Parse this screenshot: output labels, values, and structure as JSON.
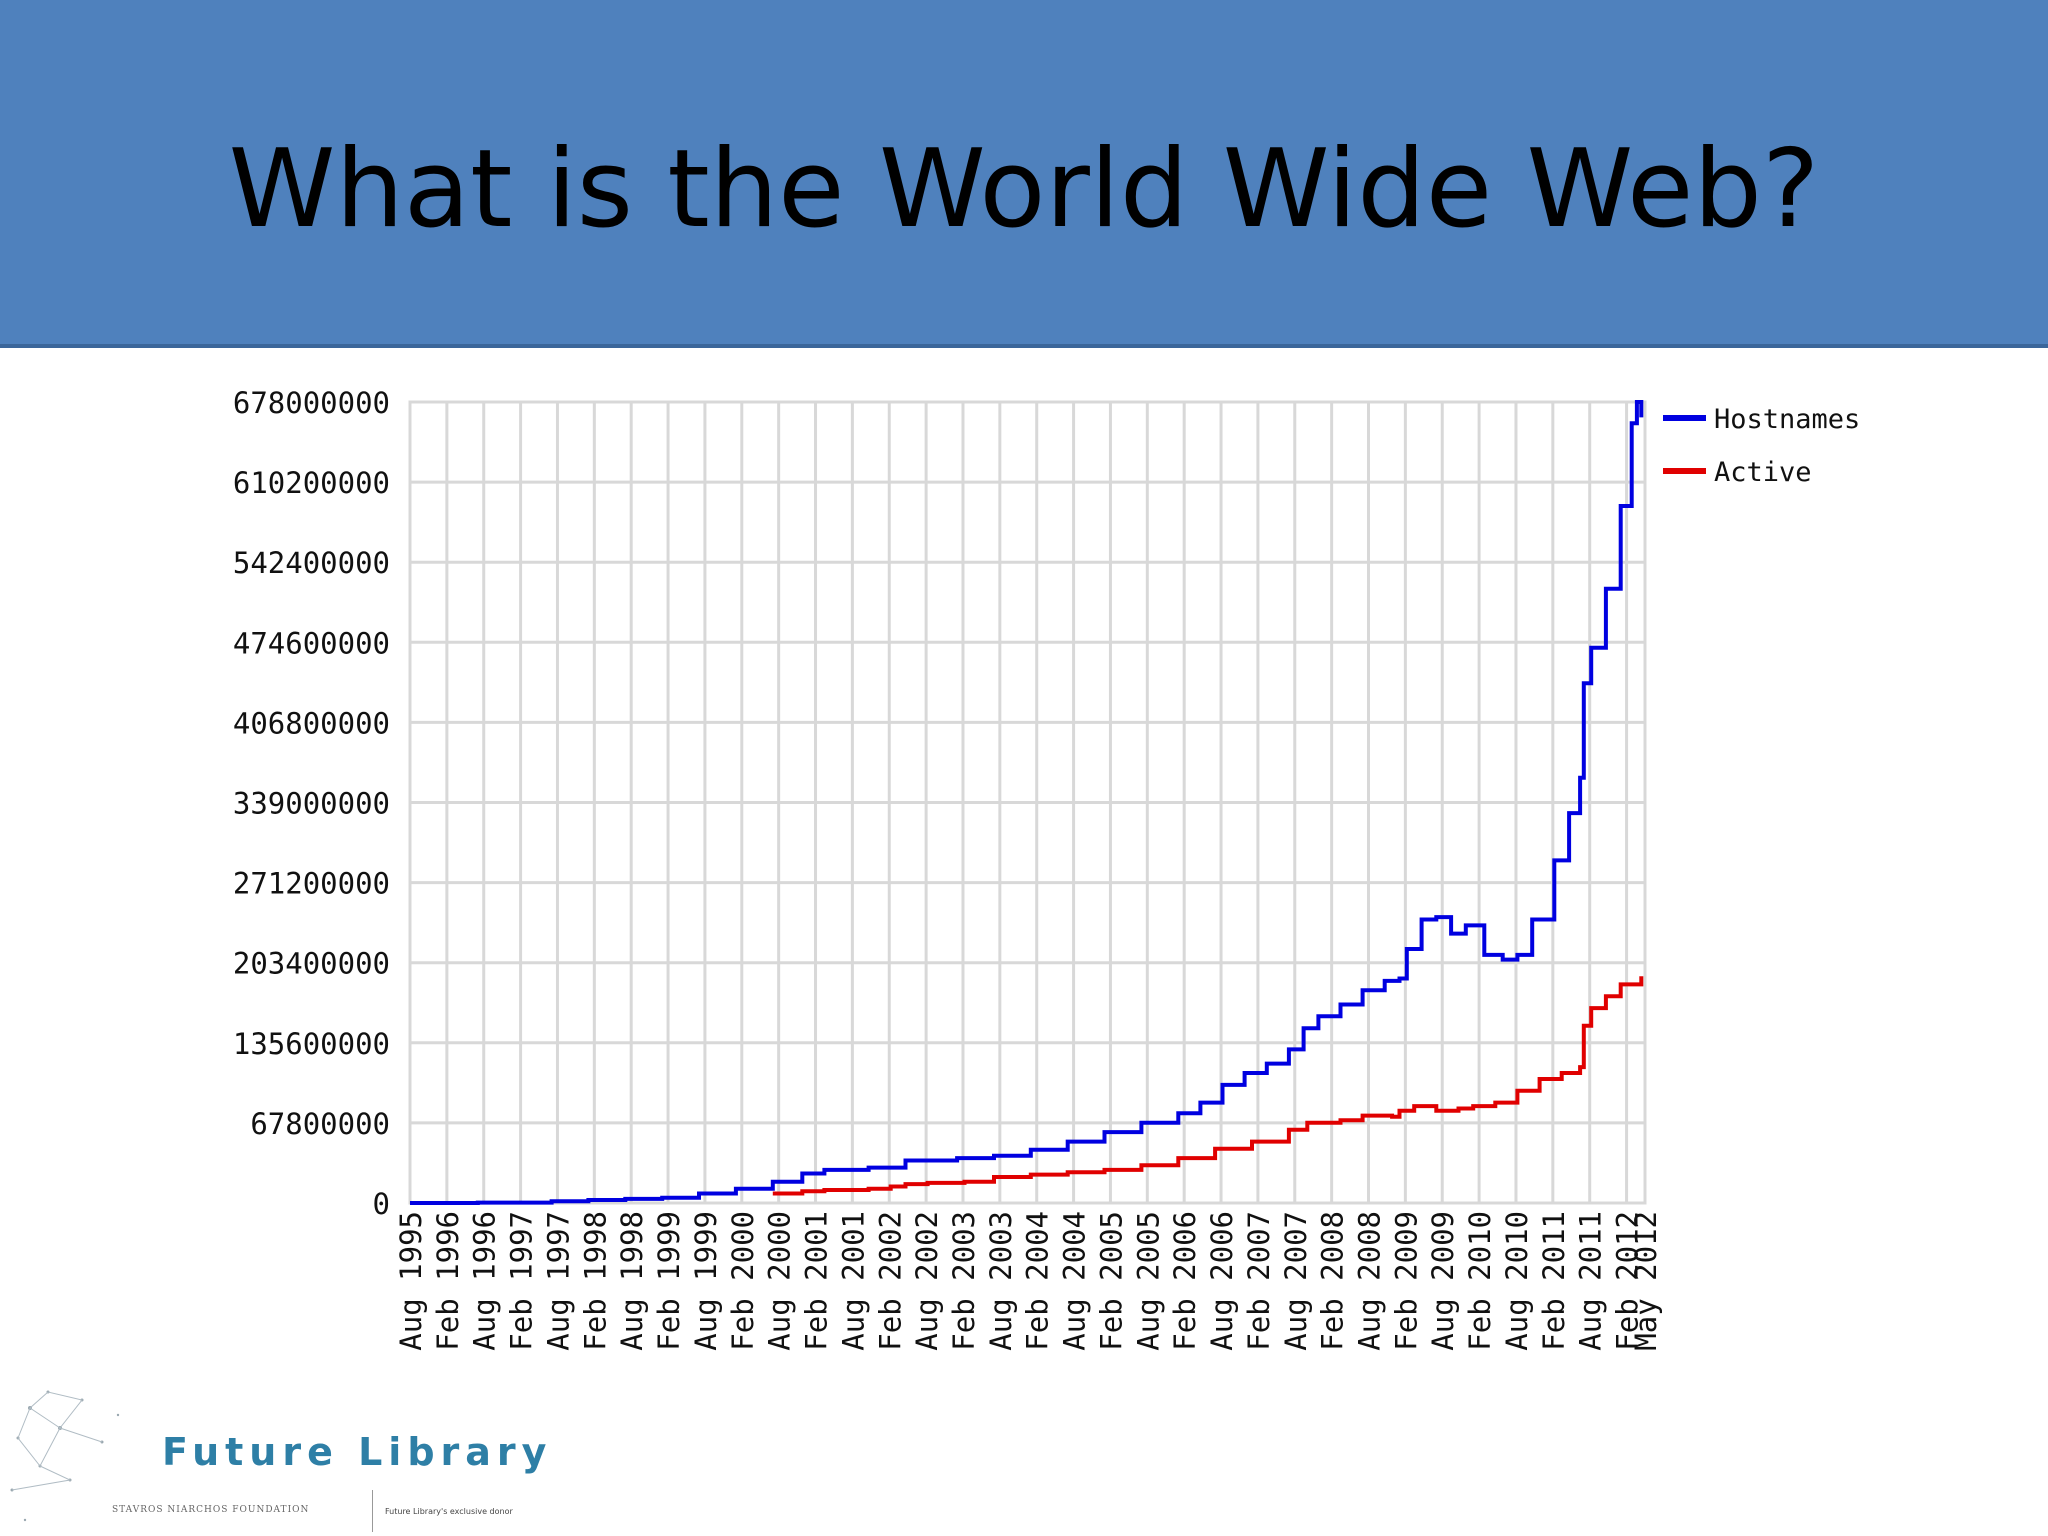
{
  "slide": {
    "title": "What is the World Wide Web?"
  },
  "footer": {
    "brand": "Future Library",
    "foundation": "STAVROS NIARCHOS FOUNDATION",
    "donor_note": "Future Library's exclusive donor"
  },
  "colors": {
    "header_bg": "#4f81bd",
    "hostnames": "#0000e0",
    "active": "#e00000",
    "grid": "#d8d8d8"
  },
  "chart_data": {
    "type": "line",
    "title": "",
    "xlabel": "",
    "ylabel": "",
    "ylim": [
      0,
      678000000
    ],
    "y_ticks": [
      "0",
      "67800000",
      "135600000",
      "203400000",
      "271200000",
      "339000000",
      "406800000",
      "474600000",
      "542400000",
      "610200000",
      "678000000"
    ],
    "x_ticks": [
      "Aug 1995",
      "Feb 1996",
      "Aug 1996",
      "Feb 1997",
      "Aug 1997",
      "Feb 1998",
      "Aug 1998",
      "Feb 1999",
      "Aug 1999",
      "Feb 2000",
      "Aug 2000",
      "Feb 2001",
      "Aug 2001",
      "Feb 2002",
      "Aug 2002",
      "Feb 2003",
      "Aug 2003",
      "Feb 2004",
      "Aug 2004",
      "Feb 2005",
      "Aug 2005",
      "Feb 2006",
      "Aug 2006",
      "Feb 2007",
      "Aug 2007",
      "Feb 2008",
      "Aug 2008",
      "Feb 2009",
      "Aug 2009",
      "Feb 2010",
      "Aug 2010",
      "Feb 2011",
      "Aug 2011",
      "Feb 2012",
      "May 2012"
    ],
    "x_tick_positions": [
      1995.58,
      1996.08,
      1996.58,
      1997.08,
      1997.58,
      1998.08,
      1998.58,
      1999.08,
      1999.58,
      2000.08,
      2000.58,
      2001.08,
      2001.58,
      2002.08,
      2002.58,
      2003.08,
      2003.58,
      2004.08,
      2004.58,
      2005.08,
      2005.58,
      2006.08,
      2006.58,
      2007.08,
      2007.58,
      2008.08,
      2008.58,
      2009.08,
      2009.58,
      2010.08,
      2010.58,
      2011.08,
      2011.58,
      2012.08,
      2012.33
    ],
    "grid": true,
    "legend": "right",
    "series": [
      {
        "name": "Hostnames",
        "color": "#0000e0",
        "points": [
          [
            1995.58,
            0.02
          ],
          [
            1996.5,
            0.3
          ],
          [
            1997.5,
            1.5
          ],
          [
            1998.0,
            2.5
          ],
          [
            1998.5,
            3.5
          ],
          [
            1999.0,
            4.5
          ],
          [
            1999.5,
            8
          ],
          [
            2000.0,
            12
          ],
          [
            2000.5,
            18
          ],
          [
            2000.9,
            25
          ],
          [
            2001.2,
            28
          ],
          [
            2001.8,
            30
          ],
          [
            2002.3,
            36
          ],
          [
            2002.6,
            36
          ],
          [
            2003.0,
            38
          ],
          [
            2003.5,
            40
          ],
          [
            2004.0,
            45
          ],
          [
            2004.5,
            52
          ],
          [
            2005.0,
            60
          ],
          [
            2005.5,
            68
          ],
          [
            2006.0,
            76
          ],
          [
            2006.3,
            85
          ],
          [
            2006.6,
            100
          ],
          [
            2006.9,
            110
          ],
          [
            2007.2,
            118
          ],
          [
            2007.5,
            130
          ],
          [
            2007.7,
            148
          ],
          [
            2007.9,
            158
          ],
          [
            2008.2,
            168
          ],
          [
            2008.5,
            180
          ],
          [
            2008.8,
            188
          ],
          [
            2009.0,
            190
          ],
          [
            2009.1,
            215
          ],
          [
            2009.3,
            240
          ],
          [
            2009.5,
            242
          ],
          [
            2009.7,
            228
          ],
          [
            2009.9,
            235
          ],
          [
            2010.05,
            235
          ],
          [
            2010.15,
            210
          ],
          [
            2010.4,
            206
          ],
          [
            2010.6,
            210
          ],
          [
            2010.8,
            240
          ],
          [
            2011.1,
            290
          ],
          [
            2011.3,
            330
          ],
          [
            2011.45,
            360
          ],
          [
            2011.5,
            440
          ],
          [
            2011.6,
            470
          ],
          [
            2011.8,
            520
          ],
          [
            2012.0,
            590
          ],
          [
            2012.15,
            660
          ],
          [
            2012.22,
            678
          ],
          [
            2012.28,
            665
          ]
        ]
      },
      {
        "name": "Active",
        "color": "#e00000",
        "points": [
          [
            2000.5,
            8
          ],
          [
            2000.9,
            10
          ],
          [
            2001.2,
            11
          ],
          [
            2001.8,
            12
          ],
          [
            2002.1,
            14
          ],
          [
            2002.3,
            16
          ],
          [
            2002.6,
            17
          ],
          [
            2003.1,
            18
          ],
          [
            2003.5,
            22
          ],
          [
            2004.0,
            24
          ],
          [
            2004.5,
            26
          ],
          [
            2005.0,
            28
          ],
          [
            2005.5,
            32
          ],
          [
            2006.0,
            38
          ],
          [
            2006.5,
            46
          ],
          [
            2007.0,
            52
          ],
          [
            2007.5,
            62
          ],
          [
            2007.75,
            68
          ],
          [
            2008.2,
            70
          ],
          [
            2008.5,
            74
          ],
          [
            2008.9,
            73
          ],
          [
            2009.0,
            78
          ],
          [
            2009.2,
            82
          ],
          [
            2009.5,
            78
          ],
          [
            2009.8,
            80
          ],
          [
            2010.0,
            82
          ],
          [
            2010.3,
            85
          ],
          [
            2010.6,
            95
          ],
          [
            2010.9,
            105
          ],
          [
            2011.2,
            110
          ],
          [
            2011.45,
            115
          ],
          [
            2011.5,
            150
          ],
          [
            2011.6,
            165
          ],
          [
            2011.8,
            175
          ],
          [
            2012.0,
            185
          ],
          [
            2012.28,
            192
          ]
        ]
      }
    ]
  }
}
